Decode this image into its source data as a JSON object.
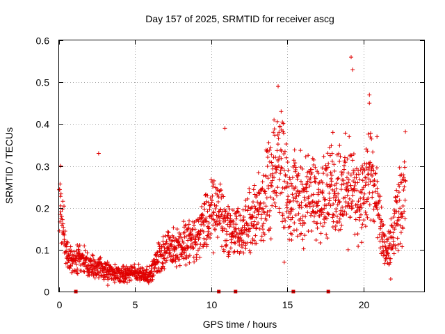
{
  "chart_data": {
    "type": "scatter",
    "title": "Day 157 of 2025, SRMTID for receiver ascg",
    "xlabel": "GPS time / hours",
    "ylabel": "SRMTID / TECUs",
    "xlim": [
      0,
      24
    ],
    "ylim": [
      0,
      0.6
    ],
    "xticks": [
      "0",
      "5",
      "10",
      "15",
      "20"
    ],
    "xtick_values": [
      0,
      5,
      10,
      15,
      20
    ],
    "yticks": [
      "0",
      "0.1",
      "0.2",
      "0.3",
      "0.4",
      "0.5",
      "0.6"
    ],
    "ytick_values": [
      0,
      0.1,
      0.2,
      0.3,
      0.4,
      0.5,
      0.6
    ],
    "grid": true,
    "marker_color": "#e00000",
    "gap_markers_hours": [
      1.1,
      10.5,
      11.6,
      15.4,
      17.7
    ],
    "series_profile": [
      {
        "x": 0.0,
        "y": 0.22
      },
      {
        "x": 0.2,
        "y": 0.18
      },
      {
        "x": 0.5,
        "y": 0.09
      },
      {
        "x": 1.0,
        "y": 0.07
      },
      {
        "x": 1.5,
        "y": 0.08
      },
      {
        "x": 2.0,
        "y": 0.06
      },
      {
        "x": 2.5,
        "y": 0.06
      },
      {
        "x": 3.0,
        "y": 0.05
      },
      {
        "x": 4.0,
        "y": 0.04
      },
      {
        "x": 5.0,
        "y": 0.045
      },
      {
        "x": 6.0,
        "y": 0.04
      },
      {
        "x": 6.5,
        "y": 0.08
      },
      {
        "x": 7.0,
        "y": 0.1
      },
      {
        "x": 8.0,
        "y": 0.11
      },
      {
        "x": 9.0,
        "y": 0.13
      },
      {
        "x": 10.0,
        "y": 0.18
      },
      {
        "x": 10.5,
        "y": 0.2
      },
      {
        "x": 11.0,
        "y": 0.15
      },
      {
        "x": 12.0,
        "y": 0.14
      },
      {
        "x": 13.0,
        "y": 0.19
      },
      {
        "x": 14.0,
        "y": 0.25
      },
      {
        "x": 14.5,
        "y": 0.32
      },
      {
        "x": 15.0,
        "y": 0.24
      },
      {
        "x": 16.0,
        "y": 0.22
      },
      {
        "x": 17.0,
        "y": 0.23
      },
      {
        "x": 18.0,
        "y": 0.24
      },
      {
        "x": 19.0,
        "y": 0.25
      },
      {
        "x": 20.0,
        "y": 0.22
      },
      {
        "x": 20.5,
        "y": 0.28
      },
      {
        "x": 21.0,
        "y": 0.18
      },
      {
        "x": 21.5,
        "y": 0.08
      },
      {
        "x": 22.0,
        "y": 0.14
      },
      {
        "x": 22.5,
        "y": 0.22
      },
      {
        "x": 22.8,
        "y": 0.26
      }
    ],
    "notable_points": [
      {
        "x": 0.1,
        "y": 0.3
      },
      {
        "x": 2.6,
        "y": 0.33
      },
      {
        "x": 10.9,
        "y": 0.39
      },
      {
        "x": 14.4,
        "y": 0.49
      },
      {
        "x": 14.6,
        "y": 0.43
      },
      {
        "x": 18.0,
        "y": 0.38
      },
      {
        "x": 19.2,
        "y": 0.56
      },
      {
        "x": 19.3,
        "y": 0.53
      },
      {
        "x": 20.4,
        "y": 0.47
      },
      {
        "x": 20.4,
        "y": 0.45
      },
      {
        "x": 20.9,
        "y": 0.37
      },
      {
        "x": 3.2,
        "y": 0.015
      },
      {
        "x": 14.8,
        "y": 0.07
      },
      {
        "x": 21.8,
        "y": 0.03
      },
      {
        "x": 19.0,
        "y": 0.1
      }
    ]
  }
}
